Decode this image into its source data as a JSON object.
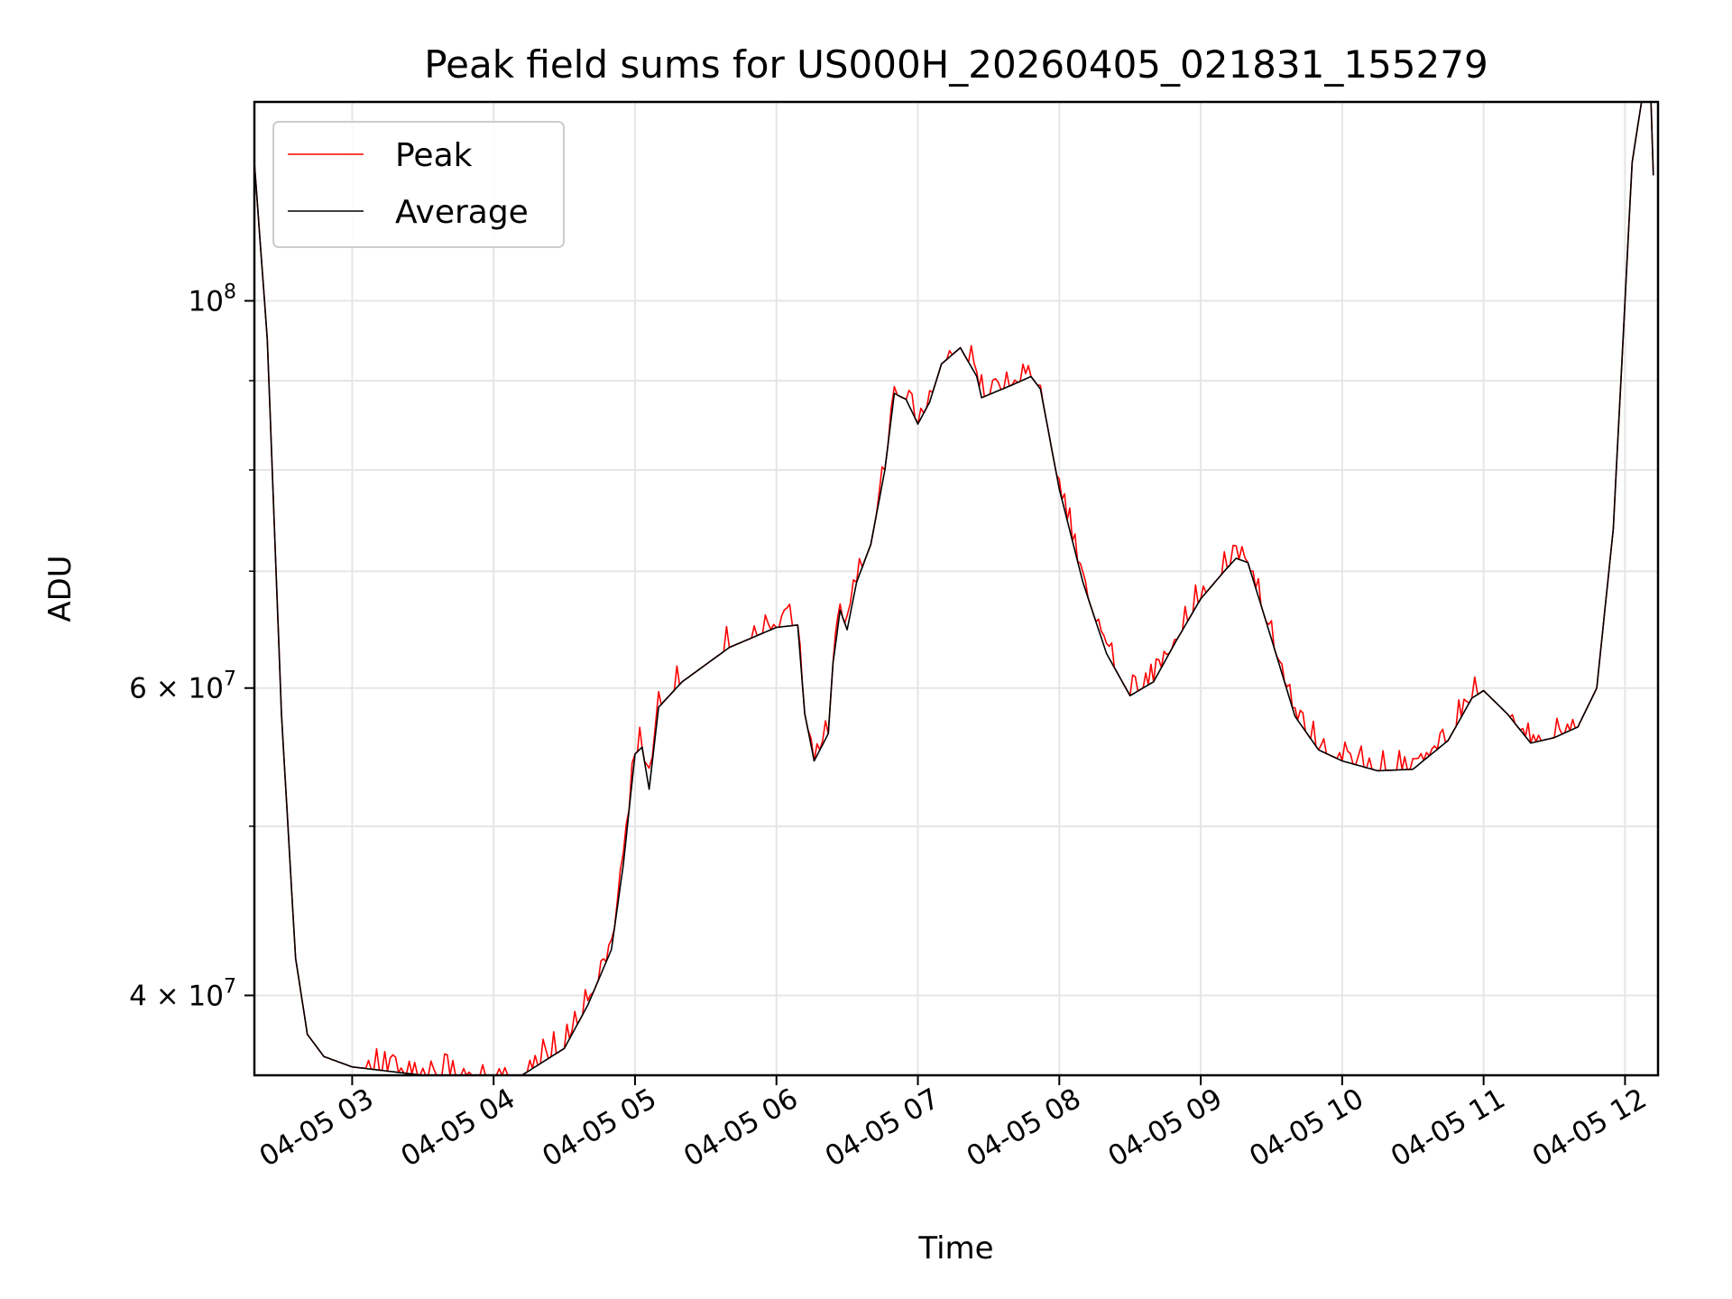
{
  "chart_data": {
    "type": "line",
    "title": "Peak field sums for US000H_20260405_021831_155279",
    "xlabel": "Time",
    "ylabel": "ADU",
    "y_scale": "log",
    "xlim": [
      "2026-04-05 02:18:31",
      "2026-04-05 12:14:00"
    ],
    "ylim": [
      36000000,
      130000000
    ],
    "grid": true,
    "legend_position": "top-left",
    "x_ticks": [
      {
        "value": "2026-04-05 03:00",
        "label": "04-05 03"
      },
      {
        "value": "2026-04-05 04:00",
        "label": "04-05 04"
      },
      {
        "value": "2026-04-05 05:00",
        "label": "04-05 05"
      },
      {
        "value": "2026-04-05 06:00",
        "label": "04-05 06"
      },
      {
        "value": "2026-04-05 07:00",
        "label": "04-05 07"
      },
      {
        "value": "2026-04-05 08:00",
        "label": "04-05 08"
      },
      {
        "value": "2026-04-05 09:00",
        "label": "04-05 09"
      },
      {
        "value": "2026-04-05 10:00",
        "label": "04-05 10"
      },
      {
        "value": "2026-04-05 11:00",
        "label": "04-05 11"
      },
      {
        "value": "2026-04-05 12:00",
        "label": "04-05 12"
      }
    ],
    "y_major_ticks": [
      {
        "value": 40000000,
        "base": "4 × 10",
        "exp": "7"
      },
      {
        "value": 60000000,
        "base": "6 × 10",
        "exp": "7"
      },
      {
        "value": 100000000,
        "base": "10",
        "exp": "8"
      }
    ],
    "y_minor_ticks": [
      50000000,
      70000000,
      80000000,
      90000000
    ],
    "series": [
      {
        "name": "Peak",
        "color": "#ff0000",
        "spikes": true,
        "points": [
          [
            "2026-04-05 02:18:31",
            120000000
          ],
          [
            "2026-04-05 02:24",
            95000000
          ],
          [
            "2026-04-05 02:30",
            58000000
          ],
          [
            "2026-04-05 02:36",
            42000000
          ],
          [
            "2026-04-05 02:41",
            38000000
          ],
          [
            "2026-04-05 02:48",
            36900000
          ],
          [
            "2026-04-05 03:00",
            36400000
          ],
          [
            "2026-04-05 03:30",
            36000000
          ],
          [
            "2026-04-05 04:00",
            35900000
          ],
          [
            "2026-04-05 04:12",
            36000000
          ],
          [
            "2026-04-05 04:30",
            37300000
          ],
          [
            "2026-04-05 04:40",
            39500000
          ],
          [
            "2026-04-05 04:50",
            42500000
          ],
          [
            "2026-04-05 04:55",
            47500000
          ],
          [
            "2026-04-05 05:00",
            55000000
          ],
          [
            "2026-04-05 05:03",
            55500000
          ],
          [
            "2026-04-05 05:06",
            52500000
          ],
          [
            "2026-04-05 05:10",
            58500000
          ],
          [
            "2026-04-05 05:20",
            60500000
          ],
          [
            "2026-04-05 05:40",
            63300000
          ],
          [
            "2026-04-05 06:00",
            65000000
          ],
          [
            "2026-04-05 06:09",
            65200000
          ],
          [
            "2026-04-05 06:12",
            58000000
          ],
          [
            "2026-04-05 06:16",
            54500000
          ],
          [
            "2026-04-05 06:22",
            56500000
          ],
          [
            "2026-04-05 06:24",
            62000000
          ],
          [
            "2026-04-05 06:27",
            66500000
          ],
          [
            "2026-04-05 06:30",
            64800000
          ],
          [
            "2026-04-05 06:34",
            69000000
          ],
          [
            "2026-04-05 06:40",
            72500000
          ],
          [
            "2026-04-05 06:46",
            80000000
          ],
          [
            "2026-04-05 06:50",
            88500000
          ],
          [
            "2026-04-05 06:55",
            87800000
          ],
          [
            "2026-04-05 07:00",
            85000000
          ],
          [
            "2026-04-05 07:05",
            87500000
          ],
          [
            "2026-04-05 07:10",
            92000000
          ],
          [
            "2026-04-05 07:18",
            94000000
          ],
          [
            "2026-04-05 07:25",
            90500000
          ],
          [
            "2026-04-05 07:27",
            88000000
          ],
          [
            "2026-04-05 07:40",
            89500000
          ],
          [
            "2026-04-05 07:48",
            90500000
          ],
          [
            "2026-04-05 07:52",
            89000000
          ],
          [
            "2026-04-05 08:00",
            78000000
          ],
          [
            "2026-04-05 08:10",
            69000000
          ],
          [
            "2026-04-05 08:20",
            62800000
          ],
          [
            "2026-04-05 08:30",
            59400000
          ],
          [
            "2026-04-05 08:40",
            60500000
          ],
          [
            "2026-04-05 08:50",
            64000000
          ],
          [
            "2026-04-05 09:00",
            67500000
          ],
          [
            "2026-04-05 09:10",
            70000000
          ],
          [
            "2026-04-05 09:15",
            71200000
          ],
          [
            "2026-04-05 09:20",
            70800000
          ],
          [
            "2026-04-05 09:30",
            64000000
          ],
          [
            "2026-04-05 09:40",
            57800000
          ],
          [
            "2026-04-05 09:50",
            55300000
          ],
          [
            "2026-04-05 10:00",
            54500000
          ],
          [
            "2026-04-05 10:15",
            53800000
          ],
          [
            "2026-04-05 10:30",
            53900000
          ],
          [
            "2026-04-05 10:45",
            56000000
          ],
          [
            "2026-04-05 10:55",
            59200000
          ],
          [
            "2026-04-05 11:00",
            59800000
          ],
          [
            "2026-04-05 11:10",
            58000000
          ],
          [
            "2026-04-05 11:20",
            55800000
          ],
          [
            "2026-04-05 11:30",
            56200000
          ],
          [
            "2026-04-05 11:40",
            57000000
          ],
          [
            "2026-04-05 11:48",
            60000000
          ],
          [
            "2026-04-05 11:55",
            74000000
          ],
          [
            "2026-04-05 12:00",
            100000000
          ],
          [
            "2026-04-05 12:03",
            120000000
          ],
          [
            "2026-04-05 12:07",
            130000000
          ],
          [
            "2026-04-05 12:11",
            131000000
          ],
          [
            "2026-04-05 12:12",
            118000000
          ]
        ]
      },
      {
        "name": "Average",
        "color": "#000000",
        "spikes": false,
        "points": [
          [
            "2026-04-05 02:18:31",
            120000000
          ],
          [
            "2026-04-05 02:24",
            95000000
          ],
          [
            "2026-04-05 02:30",
            58000000
          ],
          [
            "2026-04-05 02:36",
            42000000
          ],
          [
            "2026-04-05 02:41",
            38000000
          ],
          [
            "2026-04-05 02:48",
            36900000
          ],
          [
            "2026-04-05 03:00",
            36400000
          ],
          [
            "2026-04-05 03:30",
            36000000
          ],
          [
            "2026-04-05 04:00",
            35900000
          ],
          [
            "2026-04-05 04:12",
            36000000
          ],
          [
            "2026-04-05 04:30",
            37300000
          ],
          [
            "2026-04-05 04:40",
            39500000
          ],
          [
            "2026-04-05 04:50",
            42500000
          ],
          [
            "2026-04-05 04:55",
            47500000
          ],
          [
            "2026-04-05 05:00",
            55000000
          ],
          [
            "2026-04-05 05:03",
            55500000
          ],
          [
            "2026-04-05 05:06",
            52500000
          ],
          [
            "2026-04-05 05:10",
            58500000
          ],
          [
            "2026-04-05 05:20",
            60500000
          ],
          [
            "2026-04-05 05:40",
            63300000
          ],
          [
            "2026-04-05 06:00",
            65000000
          ],
          [
            "2026-04-05 06:09",
            65200000
          ],
          [
            "2026-04-05 06:12",
            58000000
          ],
          [
            "2026-04-05 06:16",
            54500000
          ],
          [
            "2026-04-05 06:22",
            56500000
          ],
          [
            "2026-04-05 06:24",
            62000000
          ],
          [
            "2026-04-05 06:27",
            66500000
          ],
          [
            "2026-04-05 06:30",
            64800000
          ],
          [
            "2026-04-05 06:34",
            69000000
          ],
          [
            "2026-04-05 06:40",
            72500000
          ],
          [
            "2026-04-05 06:46",
            80000000
          ],
          [
            "2026-04-05 06:50",
            88500000
          ],
          [
            "2026-04-05 06:55",
            87800000
          ],
          [
            "2026-04-05 07:00",
            85000000
          ],
          [
            "2026-04-05 07:05",
            87500000
          ],
          [
            "2026-04-05 07:10",
            92000000
          ],
          [
            "2026-04-05 07:18",
            94000000
          ],
          [
            "2026-04-05 07:25",
            90500000
          ],
          [
            "2026-04-05 07:27",
            88000000
          ],
          [
            "2026-04-05 07:40",
            89500000
          ],
          [
            "2026-04-05 07:48",
            90500000
          ],
          [
            "2026-04-05 07:52",
            89000000
          ],
          [
            "2026-04-05 08:00",
            78000000
          ],
          [
            "2026-04-05 08:10",
            69000000
          ],
          [
            "2026-04-05 08:20",
            62800000
          ],
          [
            "2026-04-05 08:30",
            59400000
          ],
          [
            "2026-04-05 08:40",
            60500000
          ],
          [
            "2026-04-05 08:50",
            64000000
          ],
          [
            "2026-04-05 09:00",
            67500000
          ],
          [
            "2026-04-05 09:10",
            70000000
          ],
          [
            "2026-04-05 09:15",
            71200000
          ],
          [
            "2026-04-05 09:20",
            70800000
          ],
          [
            "2026-04-05 09:30",
            64000000
          ],
          [
            "2026-04-05 09:40",
            57800000
          ],
          [
            "2026-04-05 09:50",
            55300000
          ],
          [
            "2026-04-05 10:00",
            54500000
          ],
          [
            "2026-04-05 10:15",
            53800000
          ],
          [
            "2026-04-05 10:30",
            53900000
          ],
          [
            "2026-04-05 10:45",
            56000000
          ],
          [
            "2026-04-05 10:55",
            59200000
          ],
          [
            "2026-04-05 11:00",
            59800000
          ],
          [
            "2026-04-05 11:10",
            58000000
          ],
          [
            "2026-04-05 11:20",
            55800000
          ],
          [
            "2026-04-05 11:30",
            56200000
          ],
          [
            "2026-04-05 11:40",
            57000000
          ],
          [
            "2026-04-05 11:48",
            60000000
          ],
          [
            "2026-04-05 11:55",
            74000000
          ],
          [
            "2026-04-05 12:00",
            100000000
          ],
          [
            "2026-04-05 12:03",
            120000000
          ],
          [
            "2026-04-05 12:07",
            130000000
          ],
          [
            "2026-04-05 12:11",
            131000000
          ],
          [
            "2026-04-05 12:12",
            118000000
          ]
        ]
      }
    ]
  }
}
